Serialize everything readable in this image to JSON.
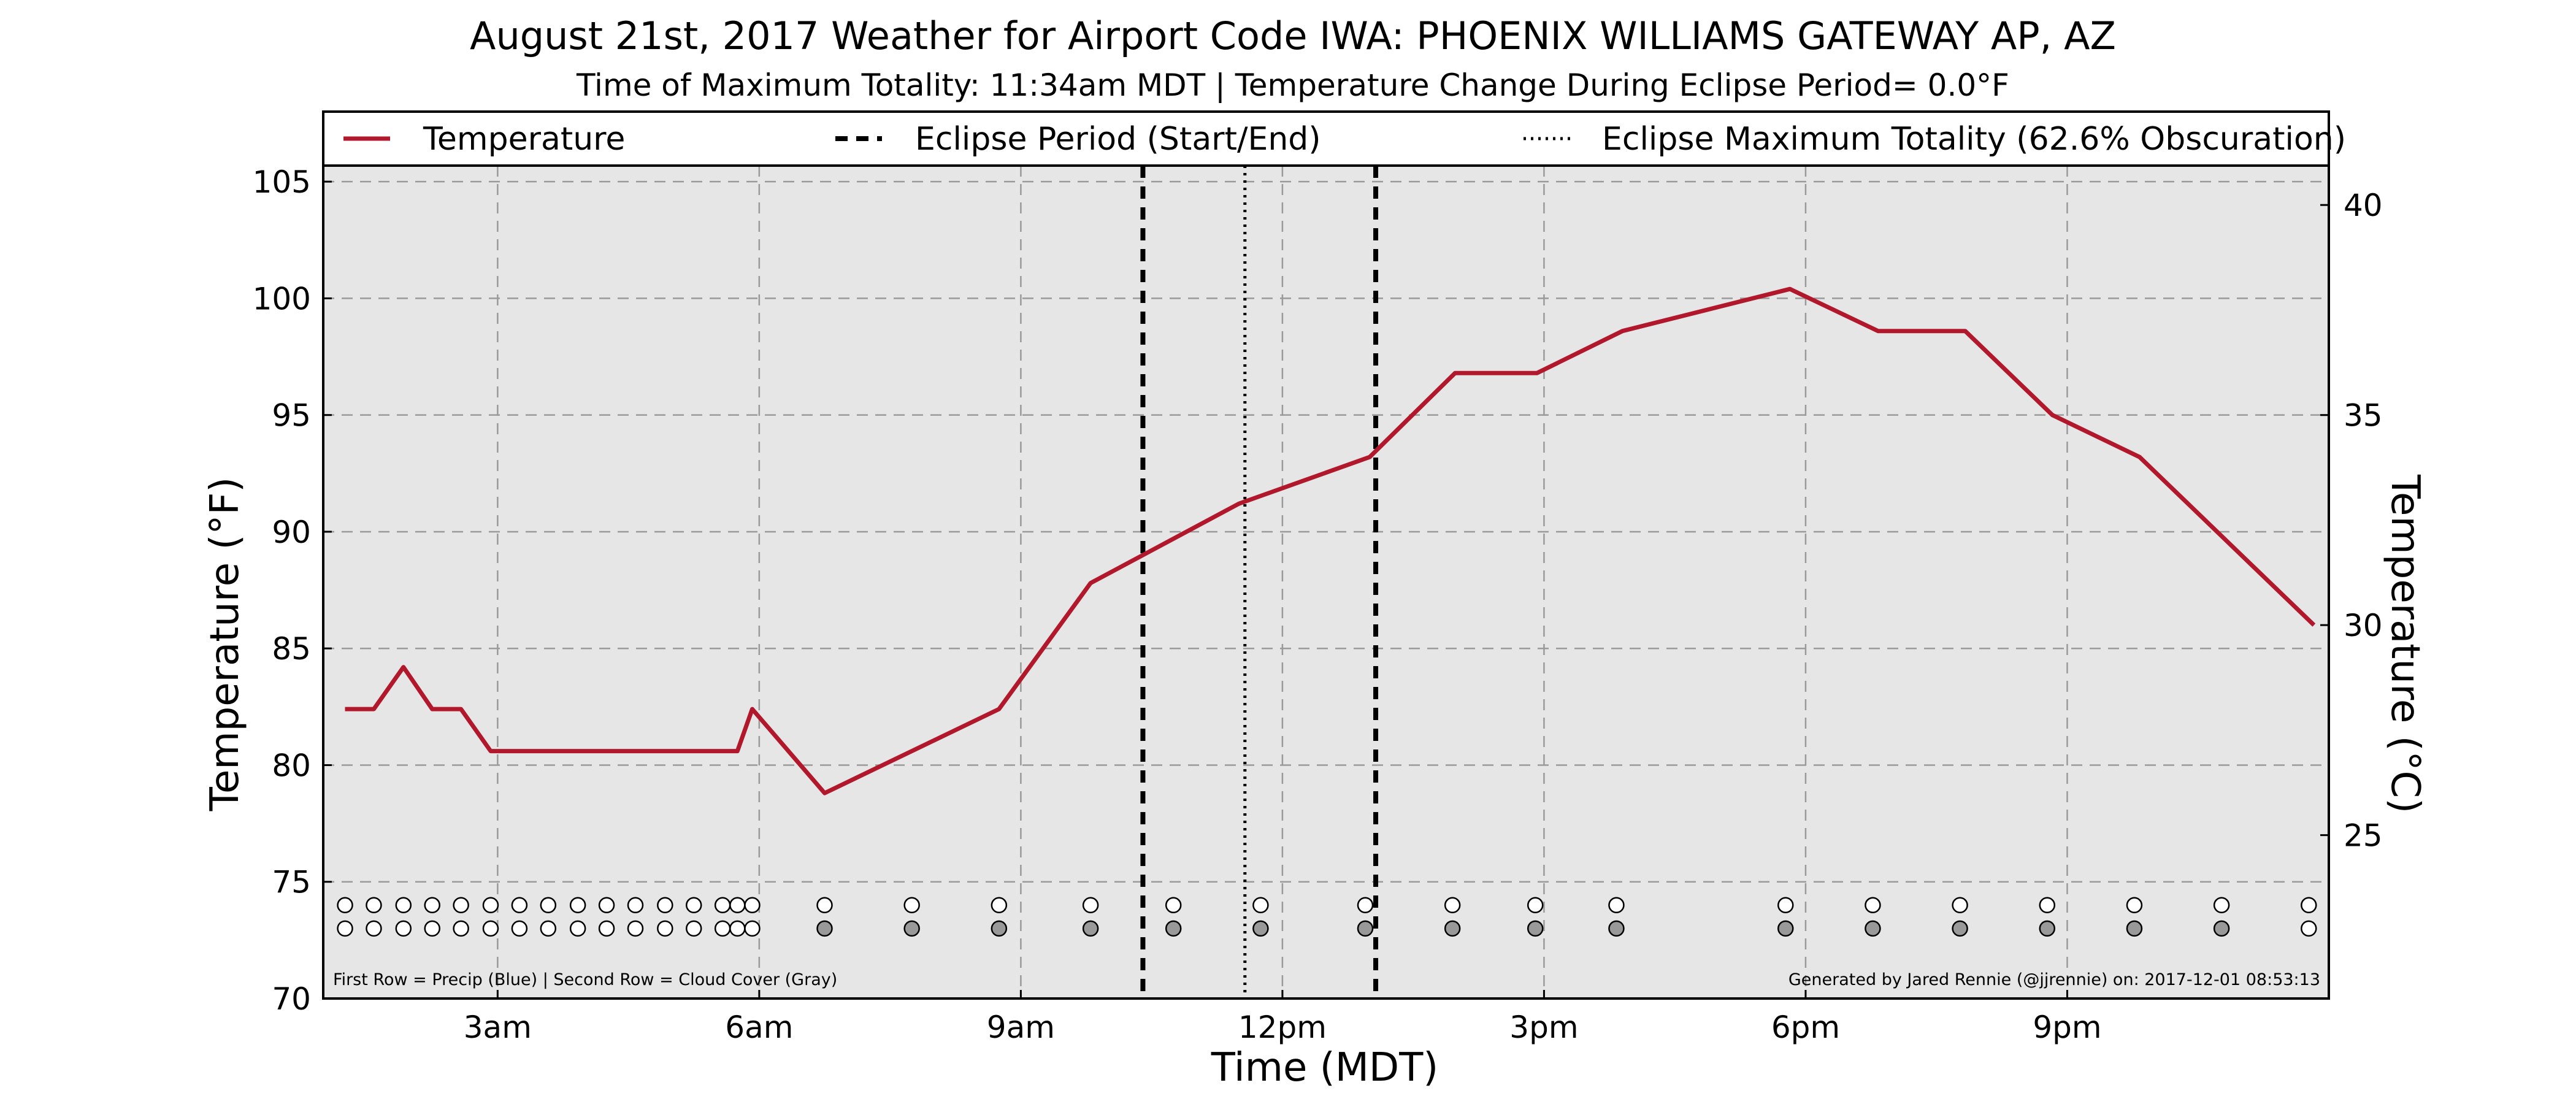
{
  "chart_data": {
    "type": "line",
    "title": "August 21st, 2017 Weather for Airport Code IWA: PHOENIX WILLIAMS GATEWAY AP, AZ",
    "subtitle": "Time of Maximum Totality: 11:34am MDT | Temperature Change During Eclipse Period= 0.0°F",
    "xlabel": "Time (MDT)",
    "ylabel": "Temperature (°F)",
    "ylabel_right": "Temperature (°C)",
    "xlim": [
      1.0,
      24.0
    ],
    "ylim": [
      70,
      108
    ],
    "ylim_right_c": [
      21.11,
      42.22
    ],
    "x_ticks": [
      {
        "x": 3,
        "label": "3am"
      },
      {
        "x": 6,
        "label": "6am"
      },
      {
        "x": 9,
        "label": "9am"
      },
      {
        "x": 12,
        "label": "12pm"
      },
      {
        "x": 15,
        "label": "3pm"
      },
      {
        "x": 18,
        "label": "6pm"
      },
      {
        "x": 21,
        "label": "9pm"
      }
    ],
    "y_ticks": [
      70,
      75,
      80,
      85,
      90,
      95,
      100,
      105
    ],
    "y_ticks_right": [
      25,
      30,
      35,
      40
    ],
    "grid": true,
    "legend_position": "top",
    "legend": {
      "temperature": "Temperature",
      "eclipse_period": "Eclipse Period (Start/End)",
      "eclipse_max": "Eclipse Maximum Totality (62.6% Obscuration)"
    },
    "series": [
      {
        "name": "Temperature",
        "color": "#b2182b",
        "x": [
          1.25,
          1.58,
          1.92,
          2.25,
          2.58,
          2.92,
          5.75,
          5.92,
          6.75,
          8.75,
          9.8,
          11.5,
          13.0,
          13.98,
          14.92,
          15.9,
          17.82,
          18.83,
          19.83,
          20.83,
          21.83,
          23.83
        ],
        "y": [
          82.4,
          82.4,
          84.2,
          82.4,
          82.4,
          80.6,
          80.6,
          82.4,
          78.8,
          82.4,
          87.8,
          91.2,
          93.2,
          96.8,
          96.8,
          98.6,
          100.4,
          98.6,
          98.6,
          95.0,
          93.2,
          86.0
        ]
      }
    ],
    "eclipse_start": 10.4,
    "eclipse_end": 13.07,
    "eclipse_max": 11.57,
    "markers": {
      "precip_row_y": 74.0,
      "cloud_row_y": 73.0,
      "clear_color": "#ffffff",
      "cloud_color": "#999999",
      "x": [
        1.25,
        1.58,
        1.92,
        2.25,
        2.58,
        2.92,
        3.25,
        3.58,
        3.92,
        4.25,
        4.58,
        4.92,
        5.25,
        5.58,
        5.75,
        5.92,
        6.75,
        7.75,
        8.75,
        9.8,
        10.75,
        11.75,
        12.95,
        13.95,
        14.9,
        15.83,
        17.77,
        18.77,
        19.77,
        20.77,
        21.77,
        22.77,
        23.77
      ],
      "cloud_filled": [
        false,
        false,
        false,
        false,
        false,
        false,
        false,
        false,
        false,
        false,
        false,
        false,
        false,
        false,
        false,
        false,
        true,
        true,
        true,
        true,
        true,
        true,
        true,
        true,
        true,
        true,
        true,
        true,
        true,
        true,
        true,
        true,
        false
      ]
    },
    "annotations": {
      "row_note": "First Row = Precip (Blue) | Second Row = Cloud Cover (Gray)",
      "credit": "Generated by Jared Rennie (@jjrennie) on: 2017-12-01 08:53:13"
    }
  }
}
